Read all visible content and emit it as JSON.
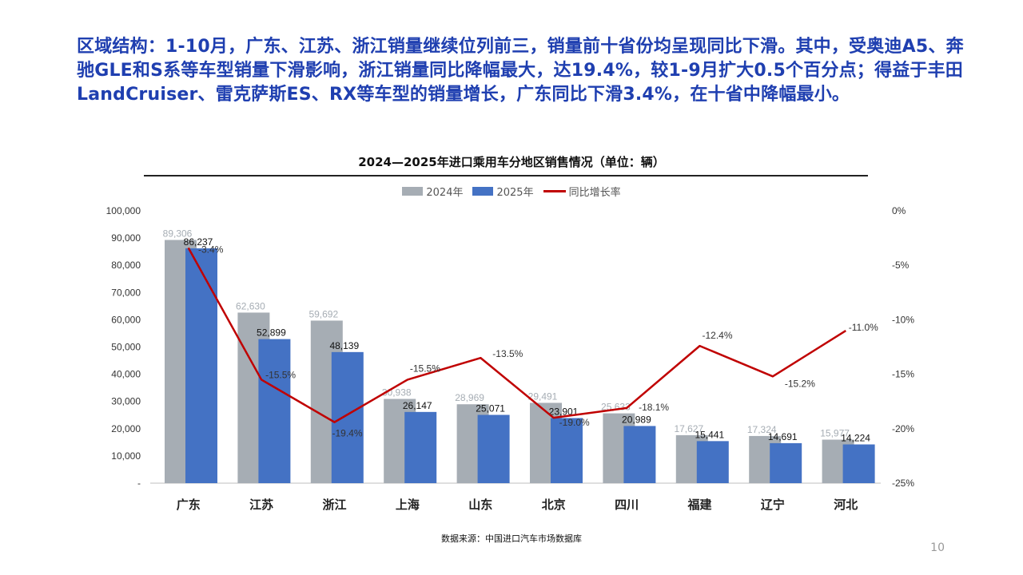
{
  "headline": "区域结构：1-10月，广东、江苏、浙江销量继续位列前三，销量前十省份均呈现同比下滑。其中，受奥迪A5、奔驰GLE和S系等车型销量下滑影响，浙江销量同比降幅最大，达19.4%，较1-9月扩大0.5个百分点；得益于丰田LandCruiser、雷克萨斯ES、RX等车型的销量增长，广东同比下滑3.4%，在十省中降幅最小。",
  "source": "数据来源：中国进口汽车市场数据库",
  "page_number": "10",
  "colors": {
    "bar_2024": "#a6adb4",
    "bar_2025": "#4472c4",
    "line": "#c00000",
    "headline": "#1f3fb0"
  },
  "chart_data": {
    "type": "bar",
    "title": "2024—2025年进口乘用车分地区销售情况（单位：辆）",
    "categories": [
      "广东",
      "江苏",
      "浙江",
      "上海",
      "山东",
      "北京",
      "四川",
      "福建",
      "辽宁",
      "河北"
    ],
    "series": [
      {
        "name": "2024年",
        "type": "bar",
        "axis": "left",
        "values": [
          89306,
          62630,
          59692,
          30938,
          28969,
          29491,
          25633,
          17627,
          17324,
          15977
        ],
        "labels": [
          "89,306",
          "62,630",
          "59,692",
          "30,938",
          "28,969",
          "29,491",
          "25,633",
          "17,627",
          "17,324",
          "15,977"
        ]
      },
      {
        "name": "2025年",
        "type": "bar",
        "axis": "left",
        "values": [
          86237,
          52899,
          48139,
          26147,
          25071,
          23901,
          20989,
          15441,
          14691,
          14224
        ],
        "labels": [
          "86,237",
          "52,899",
          "48,139",
          "26,147",
          "25,071",
          "23,901",
          "20,989",
          "15,441",
          "14,691",
          "14,224"
        ]
      },
      {
        "name": "同比增长率",
        "type": "line",
        "axis": "right",
        "values": [
          -3.4,
          -15.5,
          -19.4,
          -15.5,
          -13.5,
          -19.0,
          -18.1,
          -12.4,
          -15.2,
          -11.0
        ],
        "labels": [
          "-3.4%",
          "-15.5%",
          "-19.4%",
          "-15.5%",
          "-13.5%",
          "-19.0%",
          "-18.1%",
          "-12.4%",
          "-15.2%",
          "-11.0%"
        ]
      }
    ],
    "y_left": {
      "range": [
        0,
        100000
      ],
      "ticks": [
        0,
        10000,
        20000,
        30000,
        40000,
        50000,
        60000,
        70000,
        80000,
        90000,
        100000
      ],
      "tick_labels": [
        "-",
        "10,000",
        "20,000",
        "30,000",
        "40,000",
        "50,000",
        "60,000",
        "70,000",
        "80,000",
        "90,000",
        "100,000"
      ]
    },
    "y_right": {
      "range": [
        -25,
        0
      ],
      "ticks": [
        0,
        -5,
        -10,
        -15,
        -20,
        -25
      ],
      "tick_labels": [
        "0%",
        "-5%",
        "-10%",
        "-15%",
        "-20%",
        "-25%"
      ]
    },
    "legend_position": "top-center",
    "grid": false
  }
}
